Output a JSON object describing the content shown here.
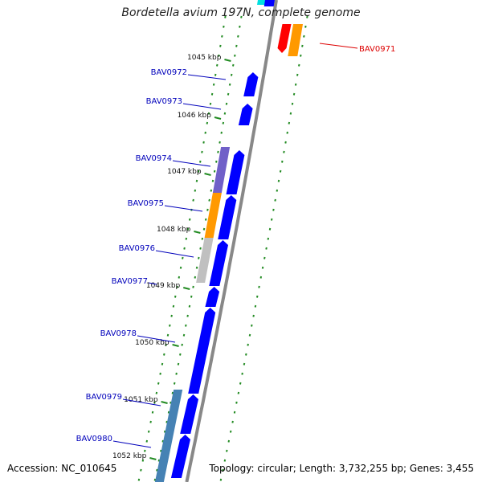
{
  "title": "Bordetella avium 197N, complete genome",
  "accession": "Accession: NC_010645",
  "topology": "Topology: circular; Length: 3,732,255 bp; Genes: 3,455",
  "ticks": [
    "1045 kbp",
    "1046 kbp",
    "1047 kbp",
    "1048 kbp",
    "1049 kbp",
    "1050 kbp",
    "1051 kbp",
    "1052 kbp"
  ],
  "genes": [
    {
      "label": "BAV0971",
      "strand": "reverse",
      "color": "#ff0000"
    },
    {
      "label": "BAV0972",
      "strand": "forward",
      "color": "#0000ff"
    },
    {
      "label": "BAV0973",
      "strand": "forward",
      "color": "#0000ff"
    },
    {
      "label": "BAV0974",
      "strand": "forward",
      "color": "#0000ff"
    },
    {
      "label": "BAV0975",
      "strand": "forward",
      "color": "#0000ff"
    },
    {
      "label": "BAV0976",
      "strand": "forward",
      "color": "#0000ff"
    },
    {
      "label": "BAV0977",
      "strand": "forward",
      "color": "#0000ff"
    },
    {
      "label": "BAV0978",
      "strand": "forward",
      "color": "#0000ff"
    },
    {
      "label": "BAV0979",
      "strand": "forward",
      "color": "#0000ff"
    },
    {
      "label": "BAV0980",
      "strand": "forward",
      "color": "#0000ff"
    }
  ],
  "colors": {
    "cds": "#0000ff",
    "cds_reverse": "#ff0000",
    "cog_purple": "#7060c8",
    "cog_orange": "#ff9900",
    "cog_gray": "#c0c0c0",
    "cog_steel": "#4682b4",
    "cog_cyan": "#00e0e0",
    "backbone": "#888888",
    "tick": "#228b22",
    "label_forward": "#0000bb",
    "label_reverse": "#dd0000"
  }
}
